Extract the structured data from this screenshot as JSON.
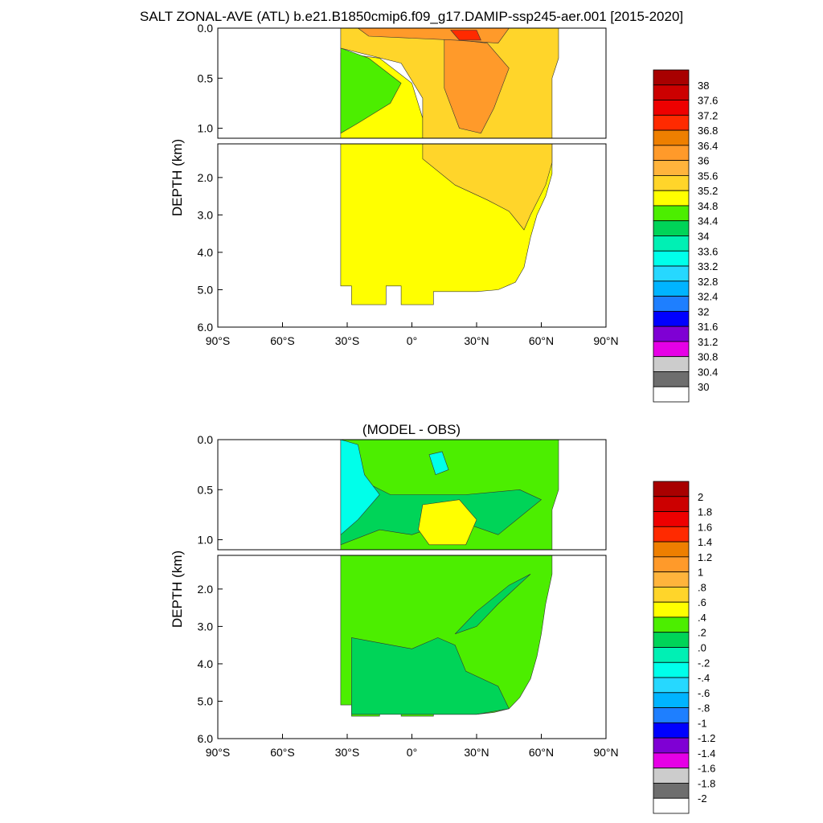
{
  "title": "SALT ZONAL-AVE (ATL) b.e21.B1850cmip6.f09_g17.DAMIP-ssp245-aer.001 [2015-2020]",
  "chart_data": [
    {
      "type": "heatmap",
      "name": "model",
      "title": "",
      "ylabel": "DEPTH (km)",
      "x_ticks": [
        "90°S",
        "60°S",
        "30°S",
        "0°",
        "30°N",
        "60°N",
        "90°N"
      ],
      "xlim": [
        -90,
        90
      ],
      "upper_y_ticks": [
        "0.0",
        "0.5",
        "1.0"
      ],
      "lower_y_ticks": [
        "2.0",
        "3.0",
        "4.0",
        "5.0",
        "6.0"
      ],
      "upper_ylim": [
        0,
        1.1
      ],
      "lower_ylim": [
        1.1,
        6.0
      ],
      "colorbar": {
        "labels": [
          "38",
          "37.6",
          "37.2",
          "36.8",
          "36.4",
          "36",
          "35.6",
          "35.2",
          "34.8",
          "34.4",
          "34",
          "33.6",
          "33.2",
          "32.8",
          "32.4",
          "32",
          "31.6",
          "31.2",
          "30.8",
          "30.4",
          "30"
        ],
        "colors": [
          "#a80000",
          "#cc0000",
          "#ee0000",
          "#ff2a00",
          "#ee7f00",
          "#ff9a2a",
          "#ffb43c",
          "#ffd52a",
          "#ffff00",
          "#4cee00",
          "#00d458",
          "#00f0b4",
          "#00ffea",
          "#26d8ff",
          "#00b4ff",
          "#1e7fff",
          "#0000ff",
          "#7f00d4",
          "#e600e6",
          "#cccccc",
          "#6e6e6e",
          "#ffffff"
        ]
      },
      "regions": [
        {
          "value": 35.0,
          "description": "deep ocean below 1.1 km, south and equatorial"
        },
        {
          "value": 35.5,
          "description": "northern subtropics 0-3.4 km"
        },
        {
          "value": 34.6,
          "description": "southern intermediate water 30S-10S"
        },
        {
          "value": 36.2,
          "description": "subtropical north 15N-45N, upper 1 km"
        },
        {
          "value": 37.0,
          "description": "surface maximum near 25N"
        }
      ]
    },
    {
      "type": "heatmap",
      "name": "difference",
      "title": "(MODEL - OBS)",
      "ylabel": "DEPTH (km)",
      "x_ticks": [
        "90°S",
        "60°S",
        "30°S",
        "0°",
        "30°N",
        "60°N",
        "90°N"
      ],
      "xlim": [
        -90,
        90
      ],
      "upper_y_ticks": [
        "0.0",
        "0.5",
        "1.0"
      ],
      "lower_y_ticks": [
        "2.0",
        "3.0",
        "4.0",
        "5.0",
        "6.0"
      ],
      "upper_ylim": [
        0,
        1.1
      ],
      "lower_ylim": [
        1.1,
        6.0
      ],
      "colorbar": {
        "labels": [
          "2",
          "1.8",
          "1.6",
          "1.4",
          "1.2",
          "1",
          ".8",
          ".6",
          ".4",
          ".2",
          ".0",
          "-.2",
          "-.4",
          "-.6",
          "-.8",
          "-1",
          "-1.2",
          "-1.4",
          "-1.6",
          "-1.8",
          "-2"
        ],
        "colors": [
          "#a80000",
          "#cc0000",
          "#ee0000",
          "#ff2a00",
          "#ee7f00",
          "#ff9a2a",
          "#ffb43c",
          "#ffd52a",
          "#ffff00",
          "#4cee00",
          "#00d458",
          "#00f0b4",
          "#00ffea",
          "#26d8ff",
          "#00b4ff",
          "#1e7fff",
          "#0000ff",
          "#7f00d4",
          "#e600e6",
          "#cccccc",
          "#6e6e6e",
          "#ffffff"
        ]
      },
      "regions": [
        {
          "value": 0.3,
          "description": "most of the basin"
        },
        {
          "value": 0.1,
          "description": "deep south and mid-depth bands"
        },
        {
          "value": -0.3,
          "description": "upper south 35S-25S"
        },
        {
          "value": 0.5,
          "description": "intermediate lens 5N-25N near 0.8 km"
        }
      ]
    }
  ]
}
